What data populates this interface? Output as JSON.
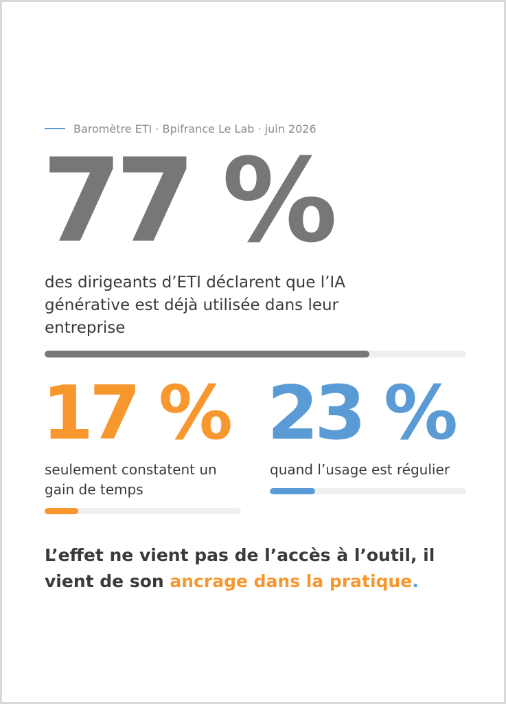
{
  "source": {
    "text": "Baromètre ETI · Bpifrance Le Lab · juin 2026"
  },
  "colors": {
    "gray": "#777777",
    "orange": "#f7972d",
    "blue": "#5b9bd5",
    "track": "#efefef",
    "text": "#3a3a3a"
  },
  "stats": [
    {
      "value": "77 %",
      "fraction": 0.77,
      "description": "des dirigeants d’ETI déclarent que l’IA générative est déjà utilisée dans leur entreprise"
    },
    {
      "value": "17 %",
      "fraction": 0.17,
      "description": "seulement constatent un gain de temps"
    },
    {
      "value": "23 %",
      "fraction": 0.23,
      "description": "quand l’usage est régulier"
    }
  ],
  "conclusion": {
    "part1": "L’effet ne vient pas de l’accès à l’outil, il vient de son ",
    "highlight": "ancrage dans la pratique",
    "end": "."
  }
}
